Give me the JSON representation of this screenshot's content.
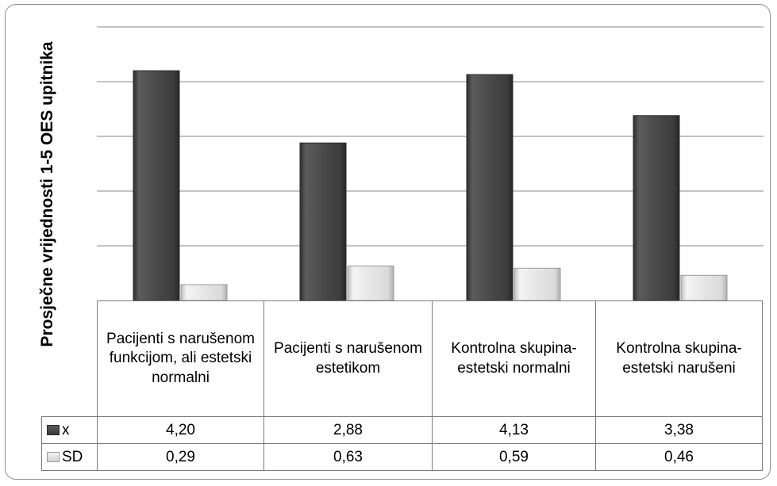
{
  "chart_data": {
    "type": "bar",
    "ylabel": "Prosječne vrijednosti 1-5 OES upitnika",
    "xlabel": "",
    "title": "",
    "ylim": [
      0,
      5
    ],
    "y_ticks": [
      0,
      1,
      2,
      3,
      4,
      5
    ],
    "grid": true,
    "categories": [
      "Pacijenti s narušenom funkcijom, ali estetski normalni",
      "Pacijenti s narušenom estetikom",
      "Kontrolna skupina-estetski normalni",
      "Kontrolna skupina-estetski narušeni"
    ],
    "series": [
      {
        "name": "x",
        "values": [
          4.2,
          2.88,
          4.13,
          3.38
        ],
        "labels": [
          "4,20",
          "2,88",
          "4,13",
          "3,38"
        ],
        "color": "#474747"
      },
      {
        "name": "SD",
        "values": [
          0.29,
          0.63,
          0.59,
          0.46
        ],
        "labels": [
          "0,29",
          "0,63",
          "0,59",
          "0,46"
        ],
        "color": "#e2e2e2"
      }
    ],
    "legend": "data-table"
  }
}
